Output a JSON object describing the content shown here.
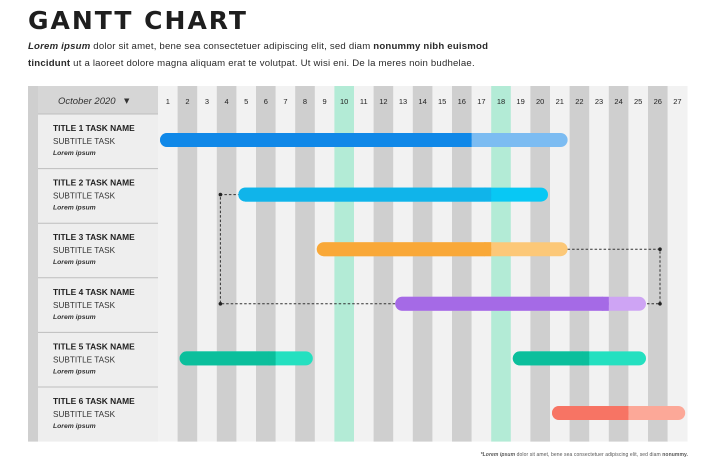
{
  "header": {
    "title": "GANTT CHART",
    "intro_lead": "Lorem ipsum",
    "intro_part1": " dolor sit amet, bene sea consectetuer adipiscing elit, sed diam ",
    "intro_bold1": "nonummy nibh euismod",
    "intro_bold2": "tincidunt",
    "intro_part2": " ut a laoreet dolore magna aliquam erat te volutpat. Ut wisi eni. De la meres noin budhelae."
  },
  "footnote": {
    "lead": "*Lorem ipsum",
    "text": " dolor sit amet, bene sea consectetuer adipiscing elit, sed diam ",
    "bold": "nonummy."
  },
  "chart_data": {
    "type": "gantt",
    "month_label": "October 2020",
    "days": [
      1,
      2,
      3,
      4,
      5,
      6,
      7,
      8,
      9,
      10,
      11,
      12,
      13,
      14,
      15,
      16,
      17,
      18,
      19,
      20,
      21,
      22,
      23,
      24,
      25,
      26,
      27
    ],
    "highlighted_days": [
      10,
      18
    ],
    "tasks": [
      {
        "title": "TITLE 1  TASK NAME",
        "subtitle": "SUBTITLE TASK",
        "note": "Lorem ipsum",
        "bars": [
          {
            "start": 1,
            "end": 21,
            "split": 17,
            "color": "#1088e8",
            "light": "#7cbcf2"
          }
        ]
      },
      {
        "title": "TITLE 2  TASK NAME",
        "subtitle": "SUBTITLE TASK",
        "note": "Lorem ipsum",
        "bars": [
          {
            "start": 5,
            "end": 20,
            "split": 18,
            "color": "#10b4ea",
            "light": "#08c8f4"
          }
        ]
      },
      {
        "title": "TITLE 3  TASK NAME",
        "subtitle": "SUBTITLE TASK",
        "note": "Lorem ipsum",
        "bars": [
          {
            "start": 9,
            "end": 21,
            "split": 18,
            "color": "#f9a838",
            "light": "#fcc878"
          }
        ]
      },
      {
        "title": "TITLE 4  TASK NAME",
        "subtitle": "SUBTITLE TASK",
        "note": "Lorem ipsum",
        "bars": [
          {
            "start": 13,
            "end": 25,
            "split": 24,
            "color": "#a56ae6",
            "light": "#cea4f4"
          }
        ]
      },
      {
        "title": "TITLE 5  TASK NAME",
        "subtitle": "SUBTITLE TASK",
        "note": "Lorem ipsum",
        "bars": [
          {
            "start": 2,
            "end": 8,
            "split": 7,
            "color": "#0bbf9c",
            "light": "#24e0c0"
          },
          {
            "start": 19,
            "end": 25,
            "split": 23,
            "color": "#0bbf9c",
            "light": "#24e0c0"
          }
        ]
      },
      {
        "title": "TITLE 6  TASK NAME",
        "subtitle": "SUBTITLE TASK",
        "note": "Lorem ipsum",
        "bars": [
          {
            "start": 21,
            "end": 27,
            "split": 25,
            "color": "#f77464",
            "light": "#fca898"
          }
        ]
      }
    ],
    "dependencies": [
      {
        "from_task": 4,
        "to_task": 2,
        "from_day": 13,
        "to_day": 5,
        "side": "left"
      },
      {
        "from_task": 3,
        "to_task": 4,
        "from_day": 21,
        "to_day": 25,
        "side": "right"
      }
    ]
  }
}
